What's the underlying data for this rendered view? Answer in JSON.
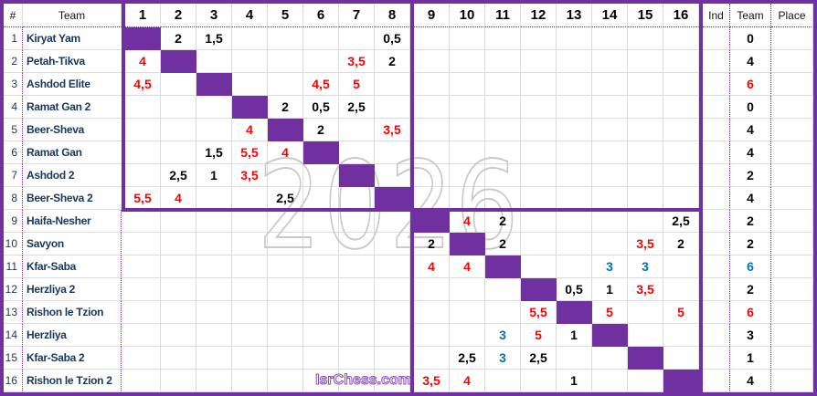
{
  "watermarks": {
    "year": "2026",
    "site": "IsrChess.com"
  },
  "colors": {
    "accent_purple": "#7030A0",
    "win_red": "#FF0000",
    "draw_blue": "#0070C0",
    "loss_black": "#000000",
    "team_name_navy": "#17375D",
    "gridline_gray": "#DCDCDC",
    "watermark_gray": "#C9C9C9"
  },
  "chart_data": {
    "type": "table",
    "columns": [
      "#",
      "Team",
      "1",
      "2",
      "3",
      "4",
      "5",
      "6",
      "7",
      "8",
      "9",
      "10",
      "11",
      "12",
      "13",
      "14",
      "15",
      "16",
      "Ind",
      "Team",
      "Place"
    ],
    "rows": [
      {
        "num": "1",
        "team": "Kiryat Yam",
        "results": {
          "2": {
            "score": "2",
            "color": "black"
          },
          "3": {
            "score": "1,5",
            "color": "black"
          },
          "8": {
            "score": "0,5",
            "color": "black"
          }
        },
        "ind": "",
        "team_points": {
          "score": "0",
          "color": "black"
        },
        "place": ""
      },
      {
        "num": "2",
        "team": "Petah-Tikva",
        "results": {
          "1": {
            "score": "4",
            "color": "red"
          },
          "7": {
            "score": "3,5",
            "color": "red"
          },
          "8": {
            "score": "2",
            "color": "black"
          }
        },
        "ind": "",
        "team_points": {
          "score": "4",
          "color": "black"
        },
        "place": ""
      },
      {
        "num": "3",
        "team": "Ashdod Elite",
        "results": {
          "1": {
            "score": "4,5",
            "color": "red"
          },
          "6": {
            "score": "4,5",
            "color": "red"
          },
          "7": {
            "score": "5",
            "color": "red"
          }
        },
        "ind": "",
        "team_points": {
          "score": "6",
          "color": "red"
        },
        "place": ""
      },
      {
        "num": "4",
        "team": "Ramat Gan 2",
        "results": {
          "5": {
            "score": "2",
            "color": "black"
          },
          "6": {
            "score": "0,5",
            "color": "black"
          },
          "7": {
            "score": "2,5",
            "color": "black"
          }
        },
        "ind": "",
        "team_points": {
          "score": "0",
          "color": "black"
        },
        "place": ""
      },
      {
        "num": "5",
        "team": "Beer-Sheva",
        "results": {
          "4": {
            "score": "4",
            "color": "red"
          },
          "6": {
            "score": "2",
            "color": "black"
          },
          "8": {
            "score": "3,5",
            "color": "red"
          }
        },
        "ind": "",
        "team_points": {
          "score": "4",
          "color": "black"
        },
        "place": ""
      },
      {
        "num": "6",
        "team": "Ramat Gan",
        "results": {
          "3": {
            "score": "1,5",
            "color": "black"
          },
          "4": {
            "score": "5,5",
            "color": "red"
          },
          "5": {
            "score": "4",
            "color": "red"
          }
        },
        "ind": "",
        "team_points": {
          "score": "4",
          "color": "black"
        },
        "place": ""
      },
      {
        "num": "7",
        "team": "Ashdod 2",
        "results": {
          "2": {
            "score": "2,5",
            "color": "black"
          },
          "3": {
            "score": "1",
            "color": "black"
          },
          "4": {
            "score": "3,5",
            "color": "red"
          }
        },
        "ind": "",
        "team_points": {
          "score": "2",
          "color": "black"
        },
        "place": ""
      },
      {
        "num": "8",
        "team": "Beer-Sheva 2",
        "results": {
          "1": {
            "score": "5,5",
            "color": "red"
          },
          "2": {
            "score": "4",
            "color": "red"
          },
          "5": {
            "score": "2,5",
            "color": "black"
          }
        },
        "ind": "",
        "team_points": {
          "score": "4",
          "color": "black"
        },
        "place": ""
      },
      {
        "num": "9",
        "team": "Haifa-Nesher",
        "results": {
          "10": {
            "score": "4",
            "color": "red"
          },
          "11": {
            "score": "2",
            "color": "black"
          },
          "16": {
            "score": "2,5",
            "color": "black"
          }
        },
        "ind": "",
        "team_points": {
          "score": "2",
          "color": "black"
        },
        "place": ""
      },
      {
        "num": "10",
        "team": "Savyon",
        "results": {
          "9": {
            "score": "2",
            "color": "black"
          },
          "11": {
            "score": "2",
            "color": "black"
          },
          "15": {
            "score": "3,5",
            "color": "red"
          },
          "16": {
            "score": "2",
            "color": "black"
          }
        },
        "ind": "",
        "team_points": {
          "score": "2",
          "color": "black"
        },
        "place": ""
      },
      {
        "num": "11",
        "team": "Kfar-Saba",
        "results": {
          "9": {
            "score": "4",
            "color": "red"
          },
          "10": {
            "score": "4",
            "color": "red"
          },
          "14": {
            "score": "3",
            "color": "blue"
          },
          "15": {
            "score": "3",
            "color": "blue"
          }
        },
        "ind": "",
        "team_points": {
          "score": "6",
          "color": "blue"
        },
        "place": ""
      },
      {
        "num": "12",
        "team": "Herzliya 2",
        "results": {
          "13": {
            "score": "0,5",
            "color": "black"
          },
          "14": {
            "score": "1",
            "color": "black"
          },
          "15": {
            "score": "3,5",
            "color": "red"
          }
        },
        "ind": "",
        "team_points": {
          "score": "2",
          "color": "black"
        },
        "place": ""
      },
      {
        "num": "13",
        "team": "Rishon le Tzion",
        "results": {
          "12": {
            "score": "5,5",
            "color": "red"
          },
          "14": {
            "score": "5",
            "color": "red"
          },
          "16": {
            "score": "5",
            "color": "red"
          }
        },
        "ind": "",
        "team_points": {
          "score": "6",
          "color": "red"
        },
        "place": ""
      },
      {
        "num": "14",
        "team": "Herzliya",
        "results": {
          "11": {
            "score": "3",
            "color": "blue"
          },
          "12": {
            "score": "5",
            "color": "red"
          },
          "13": {
            "score": "1",
            "color": "black"
          }
        },
        "ind": "",
        "team_points": {
          "score": "3",
          "color": "black"
        },
        "place": ""
      },
      {
        "num": "15",
        "team": "Kfar-Saba 2",
        "results": {
          "10": {
            "score": "2,5",
            "color": "black"
          },
          "11": {
            "score": "3",
            "color": "blue"
          },
          "12": {
            "score": "2,5",
            "color": "black"
          }
        },
        "ind": "",
        "team_points": {
          "score": "1",
          "color": "black"
        },
        "place": ""
      },
      {
        "num": "16",
        "team": "Rishon le Tzion 2",
        "results": {
          "9": {
            "score": "3,5",
            "color": "red"
          },
          "10": {
            "score": "4",
            "color": "red"
          },
          "13": {
            "score": "1",
            "color": "black"
          }
        },
        "ind": "",
        "team_points": {
          "score": "4",
          "color": "black"
        },
        "place": ""
      }
    ]
  }
}
